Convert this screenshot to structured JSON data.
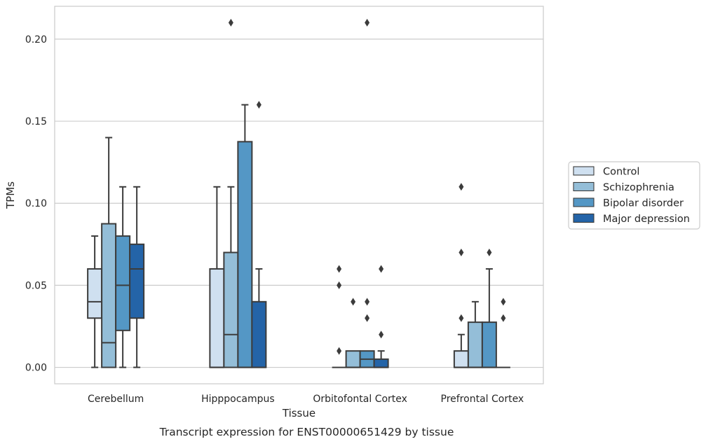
{
  "caption": "Transcript expression for ENST00000651429 by tissue",
  "chart_data": {
    "type": "boxplot",
    "xlabel": "Tissue",
    "ylabel": "TPMs",
    "ylim": [
      -0.01,
      0.22
    ],
    "yticks": [
      0.0,
      0.05,
      0.1,
      0.15,
      0.2
    ],
    "ytick_labels": [
      "0.00",
      "0.05",
      "0.10",
      "0.15",
      "0.20"
    ],
    "grid": "horizontal",
    "legend_position": "right",
    "categories": [
      "Cerebellum",
      "Hipppocampus",
      "Orbitofontal Cortex",
      "Prefrontal Cortex"
    ],
    "series": [
      {
        "name": "Control",
        "color": "#cfe0f0",
        "boxes": [
          {
            "whislo": 0.0,
            "q1": 0.03,
            "med": 0.04,
            "q3": 0.06,
            "whishi": 0.08,
            "fliers": []
          },
          {
            "whislo": 0.0,
            "q1": 0.0,
            "med": 0.0,
            "q3": 0.06,
            "whishi": 0.11,
            "fliers": []
          },
          {
            "whislo": 0.0,
            "q1": 0.0,
            "med": 0.0,
            "q3": 0.0,
            "whishi": 0.0,
            "fliers": [
              0.06,
              0.05,
              0.01
            ]
          },
          {
            "whislo": 0.0,
            "q1": 0.0,
            "med": 0.0,
            "q3": 0.01,
            "whishi": 0.02,
            "fliers": [
              0.11,
              0.07,
              0.03
            ]
          }
        ]
      },
      {
        "name": "Schizophrenia",
        "color": "#94bed8",
        "boxes": [
          {
            "whislo": 0.0,
            "q1": 0.0,
            "med": 0.015,
            "q3": 0.0875,
            "whishi": 0.14,
            "fliers": []
          },
          {
            "whislo": 0.0,
            "q1": 0.0,
            "med": 0.02,
            "q3": 0.07,
            "whishi": 0.11,
            "fliers": [
              0.21
            ]
          },
          {
            "whislo": 0.0,
            "q1": 0.0,
            "med": 0.0,
            "q3": 0.01,
            "whishi": 0.01,
            "fliers": [
              0.04
            ]
          },
          {
            "whislo": 0.0,
            "q1": 0.0,
            "med": 0.0,
            "q3": 0.0275,
            "whishi": 0.04,
            "fliers": []
          }
        ]
      },
      {
        "name": "Bipolar disorder",
        "color": "#5497c5",
        "boxes": [
          {
            "whislo": 0.0,
            "q1": 0.0225,
            "med": 0.05,
            "q3": 0.08,
            "whishi": 0.11,
            "fliers": []
          },
          {
            "whislo": 0.0,
            "q1": 0.0,
            "med": 0.0,
            "q3": 0.1375,
            "whishi": 0.16,
            "fliers": []
          },
          {
            "whislo": 0.0,
            "q1": 0.0,
            "med": 0.005,
            "q3": 0.01,
            "whishi": 0.01,
            "fliers": [
              0.21,
              0.04,
              0.03
            ]
          },
          {
            "whislo": 0.0,
            "q1": 0.0,
            "med": 0.0,
            "q3": 0.0275,
            "whishi": 0.06,
            "fliers": [
              0.07
            ]
          }
        ]
      },
      {
        "name": "Major depression",
        "color": "#2464a8",
        "boxes": [
          {
            "whislo": 0.0,
            "q1": 0.03,
            "med": 0.06,
            "q3": 0.075,
            "whishi": 0.11,
            "fliers": []
          },
          {
            "whislo": 0.0,
            "q1": 0.0,
            "med": 0.0,
            "q3": 0.04,
            "whishi": 0.06,
            "fliers": [
              0.16
            ]
          },
          {
            "whislo": 0.0,
            "q1": 0.0,
            "med": 0.0,
            "q3": 0.005,
            "whishi": 0.01,
            "fliers": [
              0.06,
              0.02
            ]
          },
          {
            "whislo": 0.0,
            "q1": 0.0,
            "med": 0.0,
            "q3": 0.0,
            "whishi": 0.0,
            "fliers": [
              0.04,
              0.03
            ]
          }
        ]
      }
    ]
  }
}
